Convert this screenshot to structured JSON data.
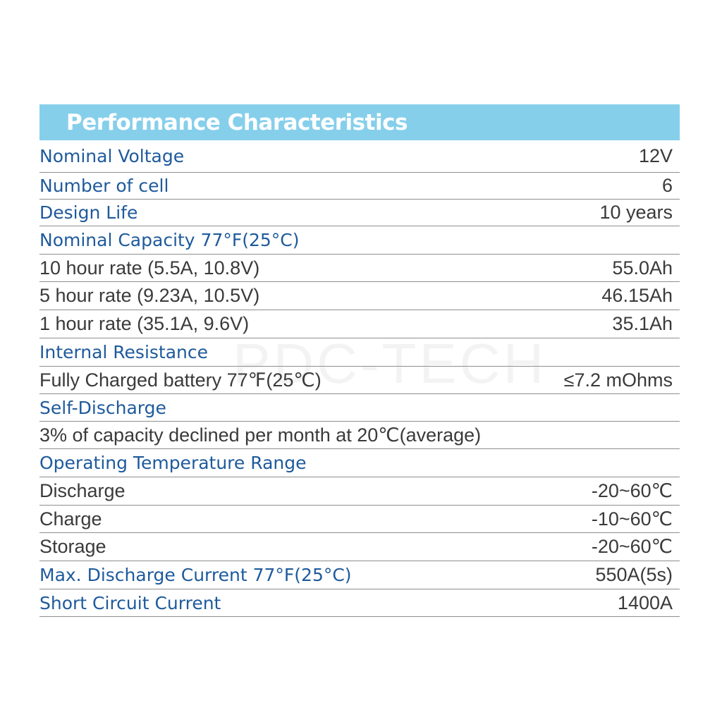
{
  "header": {
    "title": "Performance Characteristics"
  },
  "watermark": "PDC-TECH",
  "rows": [
    {
      "kind": "section",
      "label": "Nominal Voltage",
      "value": "12V"
    },
    {
      "kind": "section",
      "label": "Number of cell",
      "value": "6"
    },
    {
      "kind": "section",
      "label": "Design Life",
      "value": "10 years"
    },
    {
      "kind": "section",
      "label": "Nominal Capacity 77°F(25°C)",
      "value": ""
    },
    {
      "kind": "sub",
      "label": "10 hour rate (5.5A, 10.8V)",
      "value": "55.0Ah"
    },
    {
      "kind": "sub",
      "label": "5 hour rate (9.23A, 10.5V)",
      "value": "46.15Ah"
    },
    {
      "kind": "sub",
      "label": "1 hour rate (35.1A, 9.6V)",
      "value": "35.1Ah"
    },
    {
      "kind": "section",
      "label": "Internal Resistance",
      "value": ""
    },
    {
      "kind": "sub",
      "label": "Fully Charged battery 77℉(25℃)",
      "value": "≤7.2 mOhms"
    },
    {
      "kind": "section",
      "label": "Self-Discharge",
      "value": ""
    },
    {
      "kind": "sub",
      "label": "3% of capacity declined per month at 20℃(average)",
      "value": ""
    },
    {
      "kind": "section",
      "label": "Operating Temperature Range",
      "value": ""
    },
    {
      "kind": "sub",
      "label": "Discharge",
      "value": "-20~60℃"
    },
    {
      "kind": "sub",
      "label": "Charge",
      "value": "-10~60℃"
    },
    {
      "kind": "sub",
      "label": "Storage",
      "value": "-20~60℃"
    },
    {
      "kind": "section",
      "label": "Max. Discharge Current 77°F(25°C)",
      "value": "550A(5s)"
    },
    {
      "kind": "section",
      "label": "Short Circuit Current",
      "value": "1400A"
    }
  ]
}
